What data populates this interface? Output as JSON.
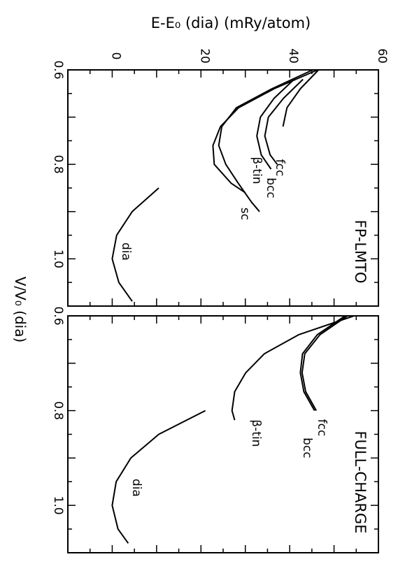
{
  "chart_data": [
    {
      "type": "line",
      "panel_label": "FP-LMTO",
      "xlabel": "V/V₀ (dia)",
      "ylabel": "E-E₀ (dia)  (mRy/atom)",
      "xlim": [
        0.6,
        1.1
      ],
      "ylim": [
        -10,
        60
      ],
      "xticks": [
        0.6,
        0.8,
        1.0
      ],
      "yticks": [
        0,
        20,
        40,
        60
      ],
      "series": [
        {
          "name": "fcc",
          "x": [
            0.62,
            0.66,
            0.7,
            0.74,
            0.78,
            0.8
          ],
          "y": [
            43,
            38.6,
            35.2,
            34.4,
            35.6,
            37.2
          ]
        },
        {
          "name": "bcc",
          "x": [
            0.62,
            0.66,
            0.7,
            0.74,
            0.78,
            0.81
          ],
          "y": [
            41,
            36.5,
            33.4,
            32.6,
            33.6,
            35.8
          ]
        },
        {
          "name": "β-tin",
          "x": [
            0.6,
            0.64,
            0.68,
            0.72,
            0.76,
            0.8,
            0.84,
            0.86
          ],
          "y": [
            46.3,
            36.5,
            28.5,
            24.4,
            22.7,
            23.0,
            26.8,
            30.0
          ]
        },
        {
          "name": "sc",
          "x": [
            0.6,
            0.64,
            0.68,
            0.72,
            0.76,
            0.8,
            0.84,
            0.88,
            0.9
          ],
          "y": [
            45.2,
            36.0,
            28.0,
            24.7,
            24.0,
            25.6,
            28.4,
            31.4,
            33.2
          ]
        },
        {
          "name": "",
          "x": [
            0.6,
            0.64,
            0.68,
            0.72
          ],
          "y": [
            46.5,
            42.4,
            39.4,
            38.5
          ]
        },
        {
          "name": "dia",
          "x": [
            0.85,
            0.9,
            0.95,
            1.0,
            1.05,
            1.09
          ],
          "y": [
            10.5,
            4.5,
            1.0,
            0.0,
            1.5,
            4.5
          ]
        }
      ]
    },
    {
      "type": "line",
      "panel_label": "FULL-CHARGE",
      "xlabel": "V/V₀ (dia)",
      "xlim": [
        0.6,
        1.1
      ],
      "ylim": [
        -10,
        60
      ],
      "xticks": [
        0.6,
        0.8,
        1.0
      ],
      "yticks": [
        0,
        20,
        40,
        60
      ],
      "series": [
        {
          "name": "fcc",
          "x": [
            0.6,
            0.64,
            0.68,
            0.72,
            0.76,
            0.8
          ],
          "y": [
            53,
            46.8,
            43.4,
            42.8,
            43.6,
            46.0
          ]
        },
        {
          "name": "bcc",
          "x": [
            0.6,
            0.64,
            0.68,
            0.72,
            0.76,
            0.8
          ],
          "y": [
            52.5,
            46.2,
            42.9,
            42.4,
            43.2,
            45.6
          ]
        },
        {
          "name": "β-tin",
          "x": [
            0.6,
            0.64,
            0.68,
            0.72,
            0.76,
            0.8,
            0.82
          ],
          "y": [
            54.5,
            42.0,
            34.3,
            30.1,
            27.6,
            27.0,
            27.6
          ]
        },
        {
          "name": "dia",
          "x": [
            0.8,
            0.85,
            0.9,
            0.95,
            1.0,
            1.05,
            1.08
          ],
          "y": [
            21.0,
            10.5,
            4.2,
            0.9,
            0.0,
            1.3,
            3.6
          ]
        }
      ]
    }
  ]
}
